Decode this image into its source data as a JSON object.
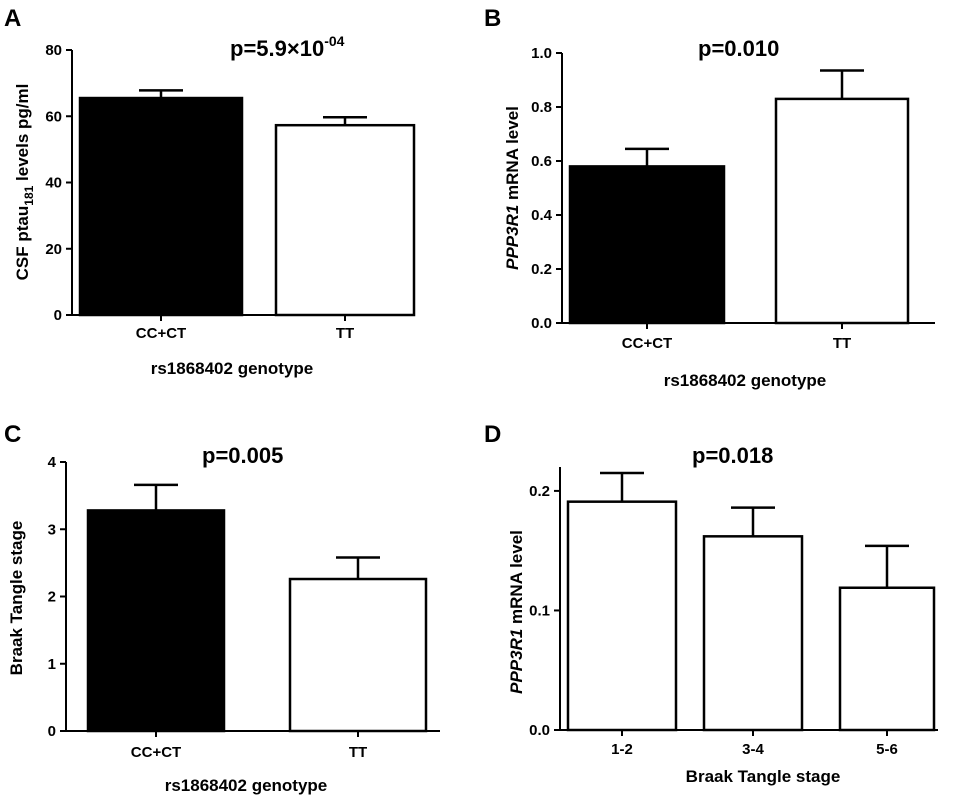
{
  "chart_data": [
    {
      "panel": "A",
      "type": "bar",
      "annotation": "p=5.9×10",
      "annotation_sup": "-04",
      "ylabel_main": "CSF ptau",
      "ylabel_sub": "181",
      "ylabel_rest": " levels pg/ml",
      "xlabel": "rs1868402 genotype",
      "categories": [
        "CC+CT",
        "TT"
      ],
      "values": [
        65.5,
        57.3
      ],
      "errors": [
        2.3,
        2.4
      ],
      "fills": [
        "#000000",
        "#ffffff"
      ],
      "ylim": [
        0,
        80
      ],
      "yticks": [
        0,
        20,
        40,
        60,
        80
      ],
      "ytick_labels": [
        "0",
        "20",
        "40",
        "60",
        "80"
      ]
    },
    {
      "panel": "B",
      "type": "bar",
      "annotation": "p=0.010",
      "ylabel_italic": "PPP3R1",
      "ylabel_rest": " mRNA level",
      "xlabel": "rs1868402 genotype",
      "categories": [
        "CC+CT",
        "TT"
      ],
      "values": [
        0.58,
        0.83
      ],
      "errors": [
        0.065,
        0.105
      ],
      "fills": [
        "#000000",
        "#ffffff"
      ],
      "ylim": [
        0,
        1.0
      ],
      "yticks": [
        0,
        0.2,
        0.4,
        0.6,
        0.8,
        1.0
      ],
      "ytick_labels": [
        "0.0",
        "0.2",
        "0.4",
        "0.6",
        "0.8",
        "1.0"
      ]
    },
    {
      "panel": "C",
      "type": "bar",
      "annotation": "p=0.005",
      "ylabel_main": "Braak Tangle stage",
      "xlabel": "rs1868402 genotype",
      "categories": [
        "CC+CT",
        "TT"
      ],
      "values": [
        3.28,
        2.26
      ],
      "errors": [
        0.38,
        0.32
      ],
      "fills": [
        "#000000",
        "#ffffff"
      ],
      "ylim": [
        0,
        4
      ],
      "yticks": [
        0,
        1,
        2,
        3,
        4
      ],
      "ytick_labels": [
        "0",
        "1",
        "2",
        "3",
        "4"
      ]
    },
    {
      "panel": "D",
      "type": "bar",
      "annotation": "p=0.018",
      "ylabel_italic": "PPP3R1",
      "ylabel_rest": " mRNA level",
      "xlabel": "Braak Tangle stage",
      "categories": [
        "1-2",
        "3-4",
        "5-6"
      ],
      "values": [
        0.191,
        0.162,
        0.119
      ],
      "errors": [
        0.024,
        0.024,
        0.035
      ],
      "fills": [
        "#ffffff",
        "#ffffff",
        "#ffffff"
      ],
      "ylim": [
        0,
        0.22
      ],
      "yticks": [
        0,
        0.1,
        0.2
      ],
      "ytick_labels": [
        "0.0",
        "0.1",
        "0.2"
      ]
    }
  ]
}
